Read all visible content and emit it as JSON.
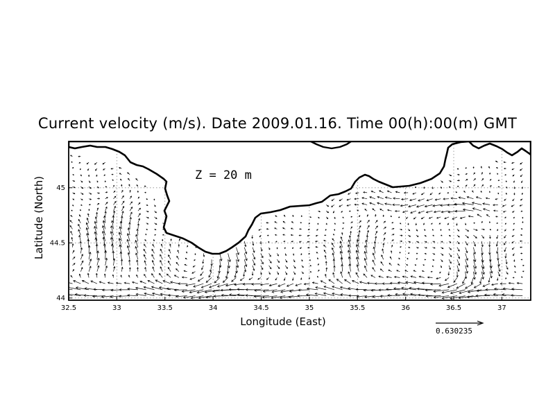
{
  "map": {
    "title": "Current velocity (m/s). Date 2009.01.16. Time 00(h):00(m) GMT",
    "depth_label": "Z  =  20  m",
    "xlabel": "Longitude (East)",
    "ylabel": "Latitude (North)",
    "lon_range": [
      32.5,
      37.3
    ],
    "lat_range": [
      43.98,
      45.42
    ],
    "x_ticks": [
      "32.5",
      "33",
      "33.5",
      "34",
      "34.5",
      "35",
      "35.5",
      "36",
      "36.5",
      "37"
    ],
    "y_ticks": [
      "44",
      "44.5",
      "45"
    ],
    "reference_vector_value": "0.630235",
    "grid": "dotted",
    "land_color": "#ffffff",
    "line_color": "#000000"
  }
}
